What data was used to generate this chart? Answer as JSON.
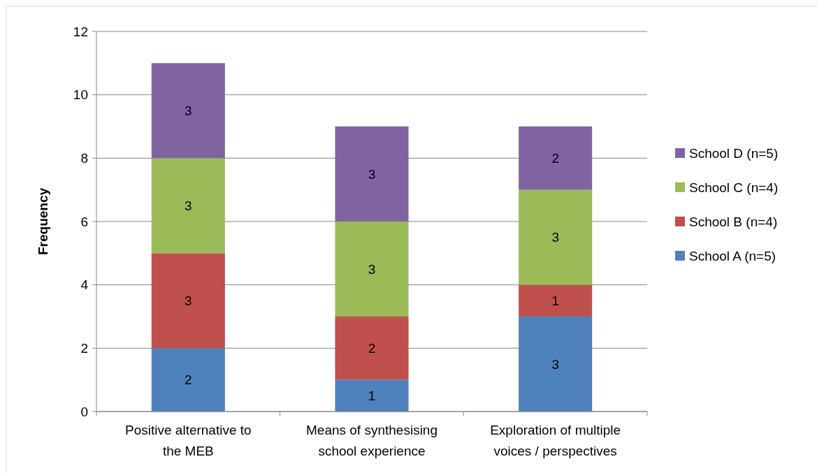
{
  "chart_data": {
    "type": "bar",
    "stacked": true,
    "ylabel": "Frequency",
    "categories": [
      "Positive alternative to the MEB",
      "Means of synthesising school experience",
      "Exploration of multiple voices / perspectives"
    ],
    "series": [
      {
        "name": "School A (n=5)",
        "color": "#4f81bd",
        "values": [
          2,
          1,
          3
        ]
      },
      {
        "name": "School B (n=4)",
        "color": "#c0504d",
        "values": [
          3,
          2,
          1
        ]
      },
      {
        "name": "School C (n=4)",
        "color": "#9bbb59",
        "values": [
          3,
          3,
          3
        ]
      },
      {
        "name": "School D (n=5)",
        "color": "#8064a2",
        "values": [
          3,
          3,
          2
        ]
      }
    ],
    "ylim": [
      0,
      12
    ],
    "yticks": [
      0,
      2,
      4,
      6,
      8,
      10,
      12
    ],
    "grid": "y",
    "legend": "right",
    "data_labels": true
  }
}
